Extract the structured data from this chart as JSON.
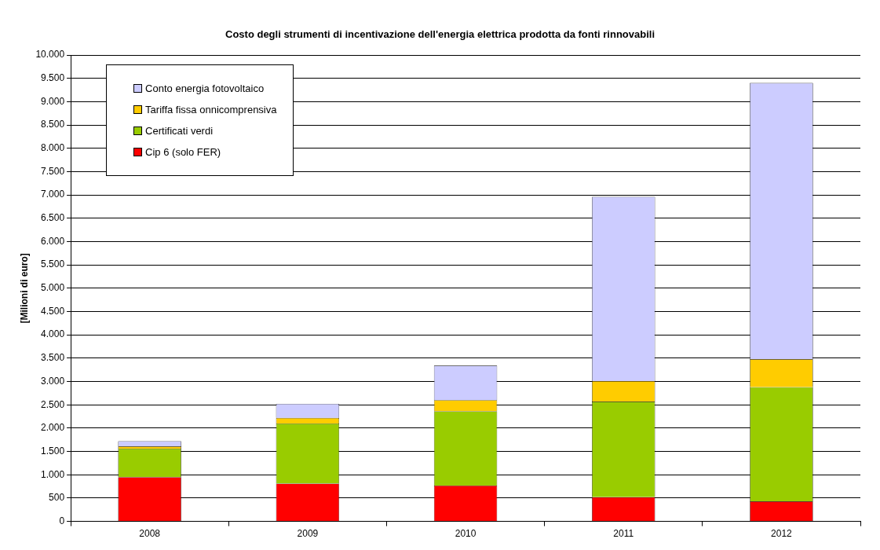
{
  "chart_data": {
    "type": "bar",
    "title": "Costo degli strumenti di incentivazione dell'energia elettrica prodotta da fonti rinnovabili",
    "ylabel": "[Milioni di euro]",
    "categories": [
      "2008",
      "2009",
      "2010",
      "2011",
      "2012"
    ],
    "stacked": true,
    "series": [
      {
        "name": "Cip 6 (solo FER)",
        "color": "#ff0000",
        "values": [
          950,
          810,
          770,
          520,
          430
        ]
      },
      {
        "name": "Certificati verdi",
        "color": "#99cc00",
        "values": [
          610,
          1290,
          1590,
          2050,
          2450
        ]
      },
      {
        "name": "Tariffa fissa onnicomprensiva",
        "color": "#ffcc00",
        "values": [
          50,
          120,
          240,
          440,
          600
        ]
      },
      {
        "name": "Conto energia fotovoltaico",
        "color": "#ccccff",
        "values": [
          110,
          300,
          740,
          3950,
          5920
        ]
      }
    ],
    "ylim": [
      0,
      10000
    ],
    "yticks": [
      0,
      {
        "value": 500,
        "label": "500"
      },
      {
        "value": 1000,
        "label": "1.000"
      },
      {
        "value": 1500,
        "label": "1.500"
      },
      {
        "value": 2000,
        "label": "2.000"
      },
      {
        "value": 2500,
        "label": "2.500"
      },
      {
        "value": 3000,
        "label": "3.000"
      },
      {
        "value": 3500,
        "label": "3.500"
      },
      {
        "value": 4000,
        "label": "4.000"
      },
      {
        "value": 4500,
        "label": "4.500"
      },
      {
        "value": 5000,
        "label": "5.000"
      },
      {
        "value": 5500,
        "label": "5.500"
      },
      {
        "value": 6000,
        "label": "6.000"
      },
      {
        "value": 6500,
        "label": "6.500"
      },
      {
        "value": 7000,
        "label": "7.000"
      },
      {
        "value": 7500,
        "label": "7.500"
      },
      {
        "value": 8000,
        "label": "8.000"
      },
      {
        "value": 8500,
        "label": "8.500"
      },
      {
        "value": 9000,
        "label": "9.000"
      },
      {
        "value": 9500,
        "label": "9.500"
      },
      {
        "value": 10000,
        "label": "10.000"
      }
    ],
    "grid": "y",
    "legend": "top left"
  }
}
